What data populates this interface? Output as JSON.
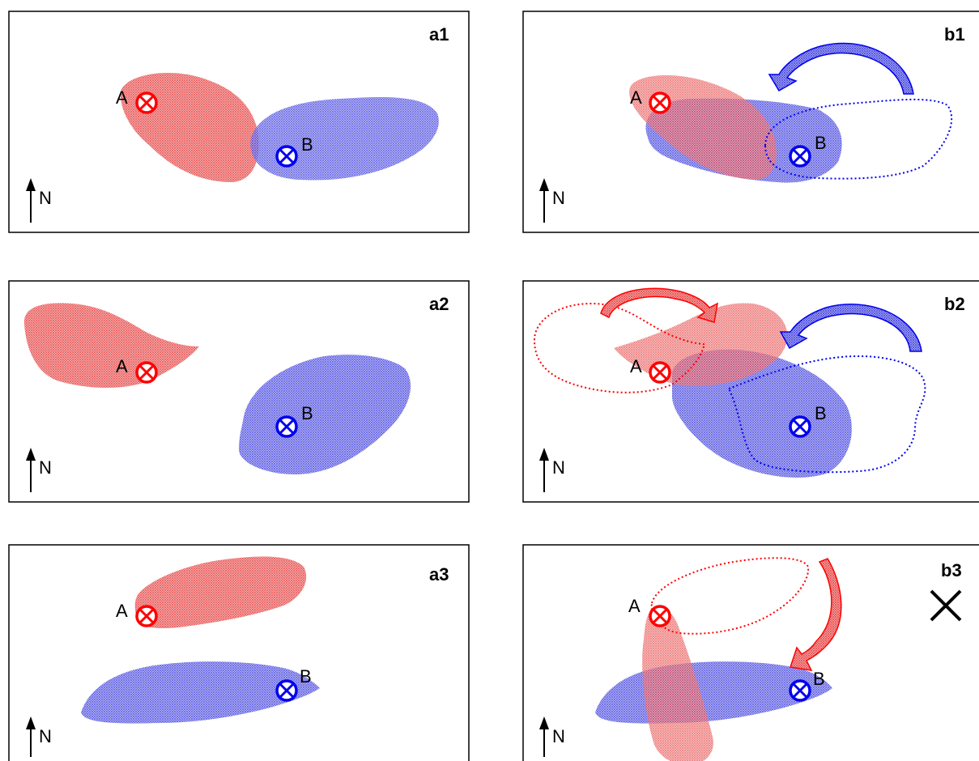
{
  "colors": {
    "site_a": "#ff0000",
    "site_b": "#0000ee",
    "fill_a": "#ee6060",
    "fill_b": "#5d5de8"
  },
  "icons": {
    "station": "circled-x-icon",
    "north": "north-arrow-icon",
    "rotation": "curved-arrow-icon",
    "invalid": "cross-mark-icon"
  },
  "panels": {
    "a1": {
      "label": "a1",
      "site_a": "A",
      "site_b": "B",
      "north": "N"
    },
    "a2": {
      "label": "a2",
      "site_a": "A",
      "site_b": "B",
      "north": "N"
    },
    "a3": {
      "label": "a3",
      "site_a": "A",
      "site_b": "B",
      "north": "N"
    },
    "b1": {
      "label": "b1",
      "site_a": "A",
      "site_b": "B",
      "north": "N"
    },
    "b2": {
      "label": "b2",
      "site_a": "A",
      "site_b": "B",
      "north": "N"
    },
    "b3": {
      "label": "b3",
      "site_a": "A",
      "site_b": "B",
      "north": "N"
    }
  }
}
